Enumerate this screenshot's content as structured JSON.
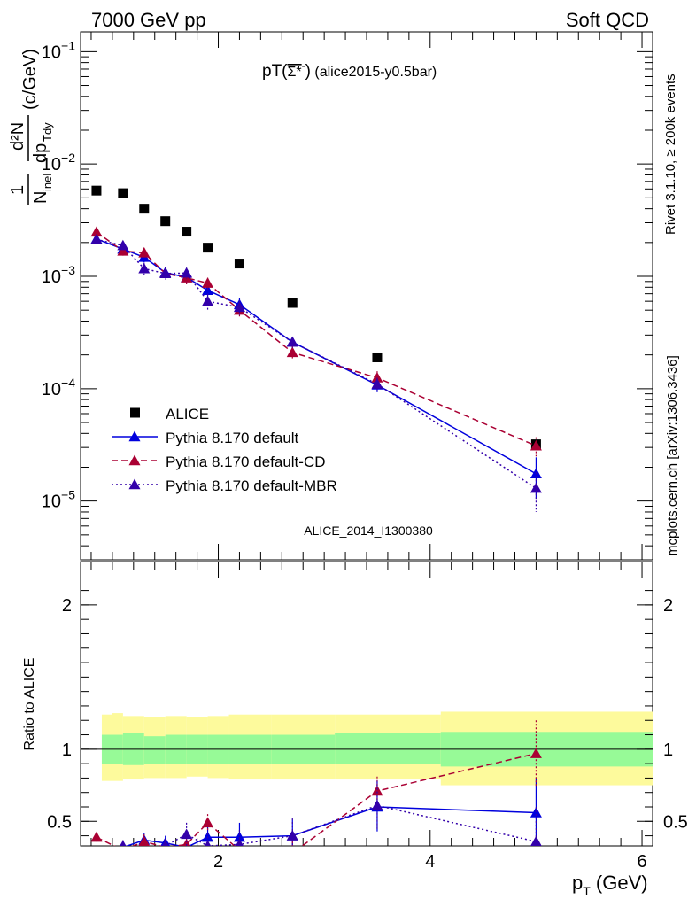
{
  "header": {
    "left": "7000 GeV pp",
    "right": "Soft QCD"
  },
  "side_labels": {
    "rivet": "Rivet 3.1.10, ≥ 200k events",
    "mcplots": "mcplots.cern.ch [arXiv:1306.3436]"
  },
  "chart_data": {
    "type": "line",
    "title": "pT(Σ*⁻) (alice2015-y0.5bar)",
    "title_main": "pT(",
    "title_sym": "Σ*",
    "title_sup": "-",
    "title_close": ")",
    "title_tail": " (alice2015-y0.5bar)",
    "watermark": "ALICE_2014_I1300380",
    "xlabel": "p",
    "xlabel_sub": "T",
    "xlabel_unit": " (GeV)",
    "ylabel_main": "1/N_inel d²N/dp_Tdy (c/GeV)",
    "ylabel_ratio": "Ratio to ALICE",
    "xlim": [
      0.7,
      6.1
    ],
    "ylim_main": [
      3e-06,
      0.15
    ],
    "ylog": true,
    "ylim_ratio": [
      0.33,
      2.3
    ],
    "x_ticks": [
      "2",
      "4",
      "6"
    ],
    "y_ticks_main": [
      "10⁻¹",
      "10⁻²",
      "10⁻³",
      "10⁻⁴",
      "10⁻⁵"
    ],
    "y_ticks_ratio": [
      "0.5",
      "1",
      "2"
    ],
    "legend": "bottom-left",
    "data": {
      "name": "ALICE",
      "x": [
        0.85,
        1.1,
        1.3,
        1.5,
        1.7,
        1.9,
        2.2,
        2.7,
        3.5,
        5.0
      ],
      "y": [
        0.0058,
        0.0055,
        0.004,
        0.0031,
        0.0025,
        0.0018,
        0.0013,
        0.00058,
        0.00019,
        3.2e-05
      ],
      "band_x": [
        0.8,
        0.9,
        1.0,
        1.2,
        1.4,
        1.6,
        1.8,
        2.0,
        2.4,
        3.0,
        4.0,
        6.0
      ],
      "band_stat": [
        [
          0.9,
          1.1
        ],
        [
          0.9,
          1.1
        ],
        [
          0.89,
          1.11
        ],
        [
          0.9,
          1.09
        ],
        [
          0.9,
          1.1
        ],
        [
          0.9,
          1.1
        ],
        [
          0.9,
          1.1
        ],
        [
          0.9,
          1.1
        ],
        [
          0.9,
          1.1
        ],
        [
          0.9,
          1.11
        ],
        [
          0.88,
          1.12
        ]
      ],
      "band_total": [
        [
          0.78,
          1.24
        ],
        [
          0.78,
          1.25
        ],
        [
          0.79,
          1.23
        ],
        [
          0.8,
          1.22
        ],
        [
          0.8,
          1.23
        ],
        [
          0.81,
          1.22
        ],
        [
          0.8,
          1.23
        ],
        [
          0.79,
          1.24
        ],
        [
          0.79,
          1.24
        ],
        [
          0.79,
          1.24
        ],
        [
          0.75,
          1.26
        ]
      ]
    },
    "series": [
      {
        "name": "Pythia 8.170 default",
        "color": "#0000dd",
        "dash": "",
        "x": [
          0.85,
          1.1,
          1.3,
          1.5,
          1.7,
          1.9,
          2.2,
          2.7,
          3.5,
          5.0
        ],
        "y": [
          0.00215,
          0.00175,
          0.00148,
          0.00108,
          0.00098,
          0.00075,
          0.00056,
          0.00026,
          0.000108,
          1.75e-05
        ],
        "err": [
          0.0001,
          0.00015,
          0.00015,
          0.00012,
          0.00012,
          0.0001,
          8e-05,
          3e-05,
          1.5e-05,
          7e-06
        ],
        "ratio": [
          0.29,
          0.32,
          0.37,
          0.35,
          0.32,
          0.39,
          0.39,
          0.4,
          0.6,
          0.56
        ],
        "ratio_err": [
          0.03,
          0.04,
          0.05,
          0.05,
          0.06,
          0.09,
          0.1,
          0.11,
          0.17,
          0.24
        ]
      },
      {
        "name": "Pythia 8.170 default-CD",
        "color": "#aa0033",
        "dash": "7,4",
        "x": [
          0.85,
          1.1,
          1.3,
          1.5,
          1.7,
          1.9,
          2.2,
          2.7,
          3.5,
          5.0
        ],
        "y": [
          0.00248,
          0.00168,
          0.00162,
          0.00106,
          0.00097,
          0.00087,
          0.0005,
          0.00021,
          0.000125,
          3.1e-05
        ],
        "err": [
          0.0001,
          0.00015,
          0.00015,
          0.00012,
          0.00012,
          0.0001,
          6e-05,
          3e-05,
          1.8e-05,
          6e-06
        ],
        "ratio": [
          0.39,
          0.3,
          0.36,
          0.32,
          0.34,
          0.49,
          0.3,
          0.28,
          0.71,
          0.97
        ],
        "ratio_err": [
          0.03,
          0.04,
          0.05,
          0.05,
          0.05,
          0.06,
          0.06,
          0.08,
          0.1,
          0.23
        ]
      },
      {
        "name": "Pythia 8.170 default-MBR",
        "color": "#3300aa",
        "dash": "2,3",
        "x": [
          0.85,
          1.1,
          1.3,
          1.5,
          1.7,
          1.9,
          2.2,
          2.7,
          3.5,
          5.0
        ],
        "y": [
          0.00213,
          0.00188,
          0.00117,
          0.00106,
          0.00107,
          0.0006,
          0.00053,
          0.00026,
          0.00011,
          1.3e-05
        ],
        "err": [
          0.0001,
          0.00015,
          0.00015,
          0.00012,
          0.00012,
          0.0001,
          8e-05,
          3e-05,
          1.5e-05,
          5e-06
        ],
        "ratio": [
          0.29,
          0.33,
          0.28,
          0.33,
          0.41,
          0.33,
          0.34,
          0.4,
          0.61,
          0.36
        ],
        "ratio_err": [
          0.03,
          0.04,
          0.05,
          0.05,
          0.08,
          0.09,
          0.1,
          0.12,
          0.17,
          0.24
        ]
      }
    ]
  }
}
